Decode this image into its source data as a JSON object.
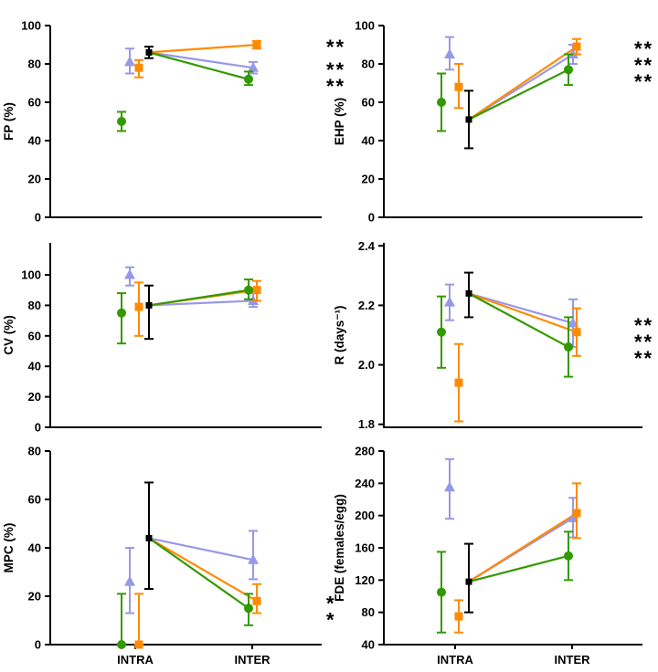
{
  "figure": {
    "background": "#ffffff",
    "categories": [
      "INTRA",
      "INTER"
    ]
  },
  "colors": {
    "green": "#339900",
    "orange": "#ff8a00",
    "purple": "#9898e6",
    "black": "#000000"
  },
  "chart_data": [
    {
      "id": "fp",
      "type": "line",
      "ylabel": "FP (%)",
      "ylim": [
        0,
        100
      ],
      "yticks": [
        "0",
        "20",
        "40",
        "60",
        "80",
        "100"
      ],
      "categories": [
        "INTRA",
        "INTER"
      ],
      "series": [
        {
          "name": "black",
          "marker": "square-small",
          "color": "#000000",
          "intra": {
            "y": 86,
            "lo": 83,
            "hi": 89
          }
        },
        {
          "name": "purple",
          "marker": "triangle",
          "color": "#9898e6",
          "intra": {
            "y": 81,
            "lo": 75,
            "hi": 88
          },
          "inter": {
            "y": 78,
            "lo": 75,
            "hi": 81
          },
          "sig": "**"
        },
        {
          "name": "orange",
          "marker": "square",
          "color": "#ff8a00",
          "intra": {
            "y": 78,
            "lo": 73,
            "hi": 82
          },
          "inter": {
            "y": 90,
            "lo": 88,
            "hi": 92
          },
          "sig": "**"
        },
        {
          "name": "green",
          "marker": "circle",
          "color": "#339900",
          "intra": {
            "y": 50,
            "lo": 45,
            "hi": 55
          },
          "inter": {
            "y": 72,
            "lo": 69,
            "hi": 76
          },
          "sig": "**"
        }
      ]
    },
    {
      "id": "ehp",
      "type": "line",
      "ylabel": "EHP (%)",
      "ylim": [
        0,
        100
      ],
      "yticks": [
        "0",
        "20",
        "40",
        "60",
        "80",
        "100"
      ],
      "categories": [
        "INTRA",
        "INTER"
      ],
      "series": [
        {
          "name": "black",
          "marker": "square-small",
          "color": "#000000",
          "intra": {
            "y": 51,
            "lo": 36,
            "hi": 66
          }
        },
        {
          "name": "purple",
          "marker": "triangle",
          "color": "#9898e6",
          "intra": {
            "y": 85,
            "lo": 77,
            "hi": 94
          },
          "inter": {
            "y": 85,
            "lo": 80,
            "hi": 90
          },
          "sig": "**"
        },
        {
          "name": "orange",
          "marker": "square",
          "color": "#ff8a00",
          "intra": {
            "y": 68,
            "lo": 57,
            "hi": 80
          },
          "inter": {
            "y": 89,
            "lo": 85,
            "hi": 93
          },
          "sig": "**"
        },
        {
          "name": "green",
          "marker": "circle",
          "color": "#339900",
          "intra": {
            "y": 60,
            "lo": 45,
            "hi": 75
          },
          "inter": {
            "y": 77,
            "lo": 69,
            "hi": 85
          },
          "sig": "**"
        }
      ]
    },
    {
      "id": "cv",
      "type": "line",
      "ylabel": "CV (%)",
      "ylim": [
        0,
        121
      ],
      "yticks": [
        "0",
        "20",
        "40",
        "60",
        "80",
        "100"
      ],
      "categories": [
        "INTRA",
        "INTER"
      ],
      "series": [
        {
          "name": "black",
          "marker": "square-small",
          "color": "#000000",
          "intra": {
            "y": 80,
            "lo": 58,
            "hi": 93
          }
        },
        {
          "name": "purple",
          "marker": "triangle",
          "color": "#9898e6",
          "intra": {
            "y": 100,
            "lo": 93,
            "hi": 105
          },
          "inter": {
            "y": 83,
            "lo": 79,
            "hi": 88
          }
        },
        {
          "name": "orange",
          "marker": "square",
          "color": "#ff8a00",
          "intra": {
            "y": 79,
            "lo": 60,
            "hi": 95
          },
          "inter": {
            "y": 90,
            "lo": 83,
            "hi": 96
          }
        },
        {
          "name": "green",
          "marker": "circle",
          "color": "#339900",
          "intra": {
            "y": 75,
            "lo": 55,
            "hi": 88
          },
          "inter": {
            "y": 90,
            "lo": 84,
            "hi": 97
          }
        }
      ]
    },
    {
      "id": "r",
      "type": "line",
      "ylabel": "R (days⁻¹)",
      "ylim": [
        1.79,
        2.41
      ],
      "yticks": [
        "1.8",
        "2.0",
        "2.2",
        "2.4"
      ],
      "categories": [
        "INTRA",
        "INTER"
      ],
      "series": [
        {
          "name": "black",
          "marker": "square-small",
          "color": "#000000",
          "intra": {
            "y": 2.24,
            "lo": 2.16,
            "hi": 2.31
          }
        },
        {
          "name": "purple",
          "marker": "triangle",
          "color": "#9898e6",
          "intra": {
            "y": 2.21,
            "lo": 2.15,
            "hi": 2.27
          },
          "inter": {
            "y": 2.14,
            "lo": 2.06,
            "hi": 2.22
          },
          "sig": "**"
        },
        {
          "name": "orange",
          "marker": "square",
          "color": "#ff8a00",
          "intra": {
            "y": 1.94,
            "lo": 1.81,
            "hi": 2.07
          },
          "inter": {
            "y": 2.11,
            "lo": 2.03,
            "hi": 2.19
          },
          "sig": "**"
        },
        {
          "name": "green",
          "marker": "circle",
          "color": "#339900",
          "intra": {
            "y": 2.11,
            "lo": 1.99,
            "hi": 2.23
          },
          "inter": {
            "y": 2.06,
            "lo": 1.96,
            "hi": 2.16
          },
          "sig": "**"
        }
      ]
    },
    {
      "id": "mpc",
      "type": "line",
      "ylabel": "MPC (%)",
      "ylim": [
        0,
        80
      ],
      "yticks": [
        "0",
        "20",
        "40",
        "60",
        "80"
      ],
      "categories": [
        "INTRA",
        "INTER"
      ],
      "series": [
        {
          "name": "black",
          "marker": "square-small",
          "color": "#000000",
          "intra": {
            "y": 44,
            "lo": 23,
            "hi": 67
          }
        },
        {
          "name": "purple",
          "marker": "triangle",
          "color": "#9898e6",
          "intra": {
            "y": 26,
            "lo": 13,
            "hi": 40
          },
          "inter": {
            "y": 35,
            "lo": 27,
            "hi": 47
          }
        },
        {
          "name": "orange",
          "marker": "square",
          "color": "#ff8a00",
          "intra": {
            "y": 0,
            "lo": 0,
            "hi": 21
          },
          "inter": {
            "y": 18,
            "lo": 13,
            "hi": 25
          },
          "sig": "*"
        },
        {
          "name": "green",
          "marker": "circle",
          "color": "#339900",
          "intra": {
            "y": 0,
            "lo": 0,
            "hi": 21
          },
          "inter": {
            "y": 15,
            "lo": 8,
            "hi": 21
          },
          "sig": "*"
        }
      ]
    },
    {
      "id": "fde",
      "type": "line",
      "ylabel": "FDE (females/egg)",
      "ylim": [
        40,
        280
      ],
      "yticks": [
        "40",
        "80",
        "120",
        "160",
        "200",
        "240",
        "280"
      ],
      "categories": [
        "INTRA",
        "INTER"
      ],
      "series": [
        {
          "name": "black",
          "marker": "square-small",
          "color": "#000000",
          "intra": {
            "y": 118,
            "lo": 80,
            "hi": 165
          }
        },
        {
          "name": "purple",
          "marker": "triangle",
          "color": "#9898e6",
          "intra": {
            "y": 235,
            "lo": 196,
            "hi": 270
          },
          "inter": {
            "y": 197,
            "lo": 173,
            "hi": 222
          }
        },
        {
          "name": "orange",
          "marker": "square",
          "color": "#ff8a00",
          "intra": {
            "y": 75,
            "lo": 55,
            "hi": 95
          },
          "inter": {
            "y": 203,
            "lo": 172,
            "hi": 240
          }
        },
        {
          "name": "green",
          "marker": "circle",
          "color": "#339900",
          "intra": {
            "y": 105,
            "lo": 55,
            "hi": 155
          },
          "inter": {
            "y": 150,
            "lo": 120,
            "hi": 180
          }
        }
      ]
    }
  ]
}
